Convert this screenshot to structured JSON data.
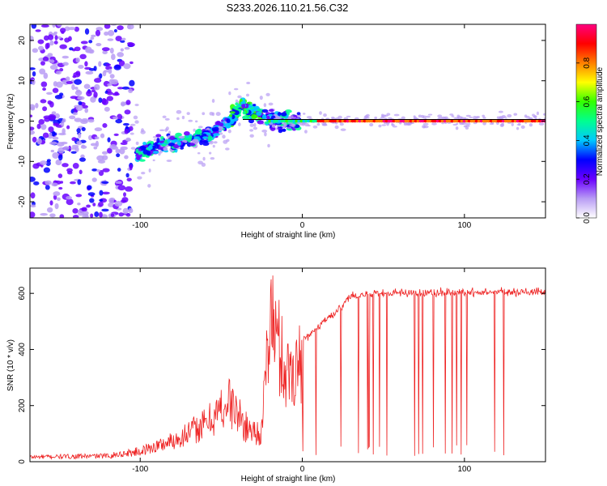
{
  "chart_data": [
    {
      "type": "heatmap",
      "title": "S233.2026.110.21.56.C32",
      "xlabel": "Height of straight line (km)",
      "ylabel": "Frequency (Hz)",
      "xlim": [
        -168,
        150
      ],
      "ylim": [
        -24,
        24
      ],
      "x_ticks": [
        -100,
        0,
        100
      ],
      "y_ticks": [
        -20,
        -10,
        0,
        10,
        20
      ],
      "colorbar": {
        "label": "Normalized spectral amplitude",
        "range": [
          0,
          1
        ],
        "ticks": [
          "0.0",
          "0.2",
          "0.4",
          "0.6",
          "0.8"
        ],
        "colors": [
          "#ffffff",
          "#b89cf4",
          "#6a00ff",
          "#0000ff",
          "#00c8ff",
          "#00ff90",
          "#33ff00",
          "#ffff00",
          "#ff8000",
          "#ff0000",
          "#ff0080"
        ]
      },
      "ridge": {
        "description_free": true,
        "centerline_hz": [
          {
            "x": -102,
            "y": -8
          },
          {
            "x": -80,
            "y": -5
          },
          {
            "x": -60,
            "y": -4
          },
          {
            "x": -45,
            "y": 0
          },
          {
            "x": -38,
            "y": 4
          },
          {
            "x": -30,
            "y": 2
          },
          {
            "x": -20,
            "y": 0
          },
          {
            "x": 0,
            "y": 0
          },
          {
            "x": 150,
            "y": 0
          }
        ]
      }
    },
    {
      "type": "line",
      "xlabel": "Height of straight line (km)",
      "ylabel": "SNR (10 * v/v)",
      "xlim": [
        -168,
        150
      ],
      "ylim": [
        0,
        690
      ],
      "x_ticks": [
        -100,
        0,
        100
      ],
      "y_ticks": [
        0,
        200,
        400,
        600
      ],
      "color": "#ee2222",
      "envelope": [
        {
          "x": -168,
          "y": 20
        },
        {
          "x": -120,
          "y": 25
        },
        {
          "x": -100,
          "y": 45
        },
        {
          "x": -80,
          "y": 90
        },
        {
          "x": -60,
          "y": 160
        },
        {
          "x": -45,
          "y": 260
        },
        {
          "x": -35,
          "y": 150
        },
        {
          "x": -25,
          "y": 120
        },
        {
          "x": -20,
          "y": 640
        },
        {
          "x": -10,
          "y": 380
        },
        {
          "x": 0,
          "y": 430
        },
        {
          "x": 20,
          "y": 530
        },
        {
          "x": 30,
          "y": 590
        },
        {
          "x": 50,
          "y": 600
        },
        {
          "x": 150,
          "y": 605
        }
      ]
    }
  ]
}
